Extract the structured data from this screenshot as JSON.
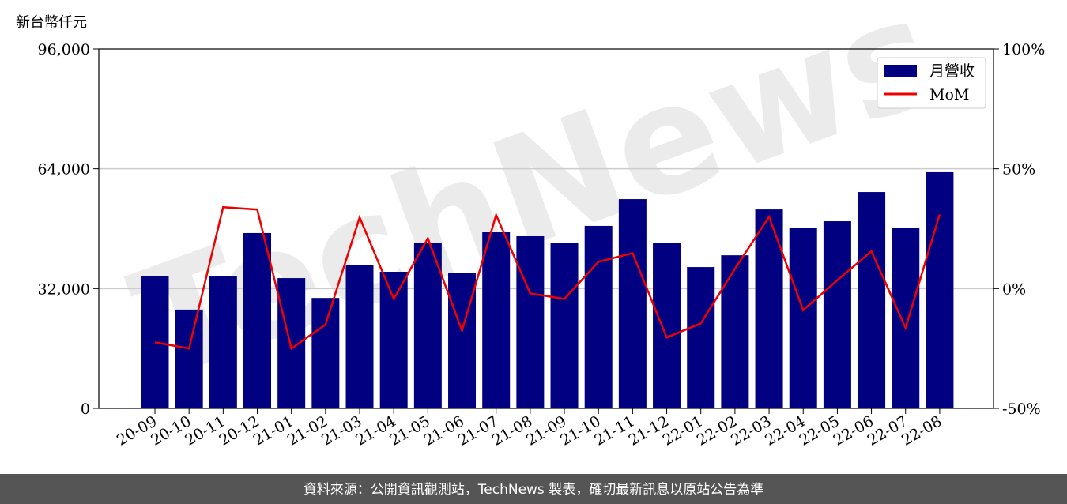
{
  "chart_data": {
    "type": "bar_line",
    "y_label": "新台幣仟元",
    "watermark": "TechNews",
    "source": "資料來源：公開資訊觀測站，TechNews 製表，確切最新訊息以原站公告為準",
    "categories": [
      "20-09",
      "20-10",
      "20-11",
      "20-12",
      "21-01",
      "21-02",
      "21-03",
      "21-04",
      "21-05",
      "21-06",
      "21-07",
      "21-08",
      "21-09",
      "21-10",
      "21-11",
      "21-12",
      "22-01",
      "22-02",
      "22-03",
      "22-04",
      "22-05",
      "22-06",
      "22-07",
      "22-08"
    ],
    "series": [
      {
        "name": "月營收",
        "type": "bar",
        "color": "#000080",
        "values": [
          35400,
          26400,
          35400,
          46850,
          34800,
          29500,
          38200,
          36500,
          44100,
          36100,
          47050,
          46000,
          44100,
          48750,
          55900,
          44300,
          37750,
          40900,
          53150,
          48300,
          50000,
          57800,
          48300,
          63100
        ]
      },
      {
        "name": "MoM",
        "type": "line",
        "axis": "y2",
        "color": "#ee0000",
        "values": [
          -22.4,
          -25,
          34,
          33,
          -25,
          -15,
          29.7,
          -4.3,
          21,
          -17.5,
          30.7,
          -2,
          -4.3,
          11.2,
          14.8,
          -20.4,
          -14.5,
          8.3,
          30,
          -9,
          3.5,
          15.6,
          -16.4,
          31
        ]
      }
    ],
    "ylim": [
      0,
      96000
    ],
    "yticks": [
      {
        "value": 0,
        "label": "0"
      },
      {
        "value": 32000,
        "label": "32,000"
      },
      {
        "value": 64000,
        "label": "64,000"
      },
      {
        "value": 96000,
        "label": "96,000"
      }
    ],
    "y2lim": [
      -50,
      100
    ],
    "y2ticks": [
      {
        "value": -50,
        "label": "-50%"
      },
      {
        "value": 0,
        "label": "0%"
      },
      {
        "value": 50,
        "label": "50%"
      },
      {
        "value": 100,
        "label": "100%"
      }
    ],
    "grid": true,
    "legend": "upper right"
  }
}
